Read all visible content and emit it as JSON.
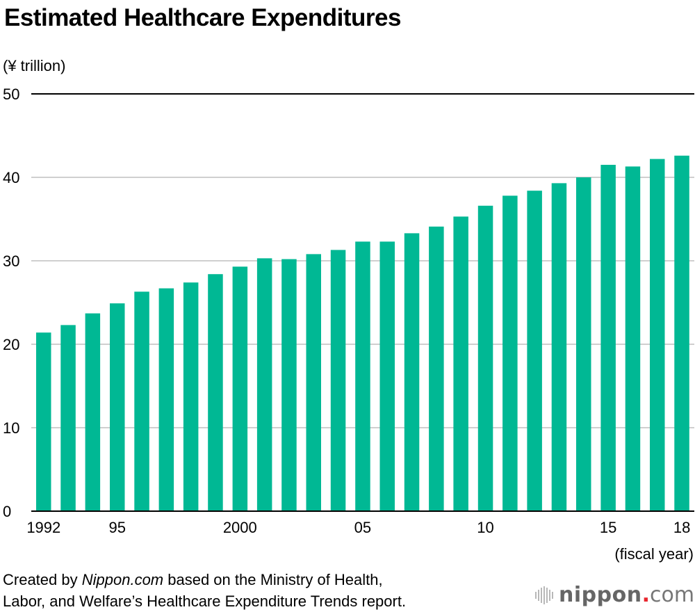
{
  "chart_data": {
    "type": "bar",
    "title": "Estimated Healthcare Expenditures",
    "ylabel": "(¥ trillion)",
    "xlabel": "(fiscal year)",
    "ylim": [
      0,
      50
    ],
    "yticks": [
      0,
      10,
      20,
      30,
      40,
      50
    ],
    "grid": true,
    "color": "#00b894",
    "categories": [
      "1992",
      "1993",
      "1994",
      "1995",
      "1996",
      "1997",
      "1998",
      "1999",
      "2000",
      "2001",
      "2002",
      "2003",
      "2004",
      "2005",
      "2006",
      "2007",
      "2008",
      "2009",
      "2010",
      "2011",
      "2012",
      "2013",
      "2014",
      "2015",
      "2016",
      "2017",
      "2018"
    ],
    "values": [
      21.4,
      22.3,
      23.7,
      24.9,
      26.3,
      26.7,
      27.4,
      28.4,
      29.3,
      30.3,
      30.2,
      30.8,
      31.3,
      32.3,
      32.3,
      33.3,
      34.1,
      35.3,
      36.6,
      37.8,
      38.4,
      39.3,
      40.0,
      41.5,
      41.3,
      42.2,
      42.6
    ],
    "xtick_labels": [
      {
        "index": 0,
        "label": "1992"
      },
      {
        "index": 3,
        "label": "95"
      },
      {
        "index": 8,
        "label": "2000"
      },
      {
        "index": 13,
        "label": "05"
      },
      {
        "index": 18,
        "label": "10"
      },
      {
        "index": 23,
        "label": "15"
      },
      {
        "index": 26,
        "label": "18"
      }
    ]
  },
  "source": {
    "prefix": "Created by ",
    "brand": "Nippon.com",
    "suffix": " based on the Ministry of Health,",
    "line2": "Labor, and Welfare’s Healthcare Expenditure Trends report."
  },
  "logo": {
    "word": "nippon",
    "dot": ".",
    "tld": "com",
    "accent": "#e8262e"
  }
}
